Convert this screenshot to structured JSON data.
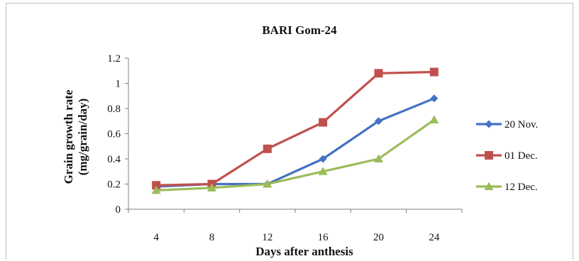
{
  "chart_data": {
    "type": "line",
    "title": "BARI Gom-24",
    "xlabel": "Days after anthesis",
    "ylabel_line1": "Grain growth rate",
    "ylabel_line2": "(mg/grain/day)",
    "x": [
      4,
      8,
      12,
      16,
      20,
      24
    ],
    "x_tick_labels": [
      "4",
      "8",
      "12",
      "16",
      "20",
      "24"
    ],
    "ylim": [
      0,
      1.2
    ],
    "y_tick_labels": [
      "0",
      "0.2",
      "0.4",
      "0.6",
      "0.8",
      "1",
      "1.2"
    ],
    "y_ticks": [
      0,
      0.2,
      0.4,
      0.6,
      0.8,
      1.0,
      1.2
    ],
    "grid": false,
    "legend_position": "right",
    "series": [
      {
        "name": "20 Nov.",
        "values": [
          0.18,
          0.2,
          0.2,
          0.4,
          0.7,
          0.88
        ],
        "color": "#4472c4",
        "marker": "diamond"
      },
      {
        "name": "01 Dec.",
        "values": [
          0.19,
          0.2,
          0.48,
          0.69,
          1.08,
          1.09
        ],
        "color": "#c0504d",
        "marker": "square"
      },
      {
        "name": "12 Dec.",
        "values": [
          0.15,
          0.17,
          0.2,
          0.3,
          0.4,
          0.71
        ],
        "color": "#9bbb59",
        "marker": "triangle"
      }
    ]
  }
}
